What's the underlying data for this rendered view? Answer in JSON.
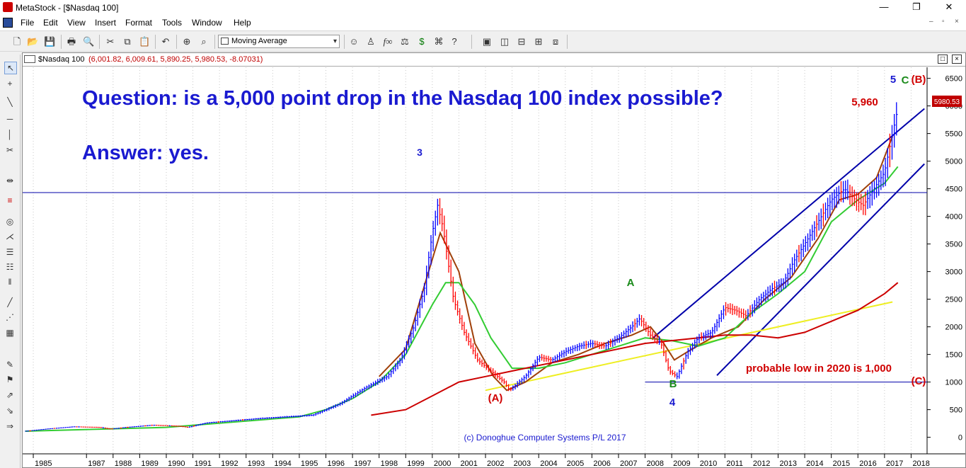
{
  "window": {
    "title": "MetaStock - [$Nasdaq 100]",
    "minimize": "—",
    "maximize": "❐",
    "close": "✕"
  },
  "menu": {
    "items": [
      "File",
      "Edit",
      "View",
      "Insert",
      "Format",
      "Tools",
      "Window",
      "Help"
    ],
    "mdi_min": "–",
    "mdi_restore": "▫",
    "mdi_close": "×"
  },
  "toolbar": {
    "indicator_select": "Moving Average",
    "indicator_chevron": "▾"
  },
  "chart_window": {
    "name": "$Nasdaq 100",
    "ohlc": "(6,001.82, 6,009.61, 5,890.25, 5,980.53, -8.07031)"
  },
  "chart_data": {
    "type": "line",
    "title": "Question: is a 5,000 point drop in the Nasdaq 100 index possible?",
    "subtitle": "Answer: yes.",
    "x_ticks": [
      "1985",
      "1987",
      "1988",
      "1989",
      "1990",
      "1991",
      "1992",
      "1993",
      "1994",
      "1995",
      "1996",
      "1997",
      "1998",
      "1999",
      "2000",
      "2001",
      "2002",
      "2003",
      "2004",
      "2005",
      "2006",
      "2007",
      "2008",
      "2009",
      "2010",
      "2011",
      "2012",
      "2013",
      "2014",
      "2015",
      "2016",
      "2017",
      "2018"
    ],
    "y_ticks": [
      0,
      500,
      1000,
      1500,
      2000,
      2500,
      3000,
      3500,
      4000,
      4500,
      5000,
      5500,
      6000,
      6500
    ],
    "ylim": [
      -300,
      6700
    ],
    "xlim": [
      1984.6,
      2018.6
    ],
    "last_price_label": "5980.53",
    "colors": {
      "price_up": "#0000ff",
      "price_down": "#ff0000",
      "ma_short": "#a0400a",
      "ma_mid": "#33cc33",
      "ma_long": "#cc0000",
      "trendline": "#eeee22",
      "channel": "#0000aa",
      "title": "#1a1ad0",
      "wave_blue": "#1a1ad0",
      "wave_green": "#1a8a1a",
      "wave_red": "#d00000"
    },
    "series": [
      {
        "name": "Price",
        "x": [
          1984.7,
          1985.5,
          1986.5,
          1987.5,
          1987.9,
          1988.5,
          1989.5,
          1990.5,
          1990.8,
          1991.5,
          1992.5,
          1993.5,
          1994.5,
          1995.5,
          1996.5,
          1997.5,
          1998.3,
          1998.8,
          1999.3,
          1999.7,
          2000.0,
          2000.2,
          2000.4,
          2000.8,
          2001.2,
          2001.7,
          2002.2,
          2002.7,
          2002.9,
          2003.5,
          2004.0,
          2004.5,
          2005.0,
          2005.5,
          2006.0,
          2006.5,
          2007.0,
          2007.5,
          2007.8,
          2008.2,
          2008.6,
          2008.9,
          2009.2,
          2009.6,
          2010.0,
          2010.5,
          2011.0,
          2011.4,
          2011.8,
          2012.3,
          2012.8,
          2013.2,
          2013.6,
          2014.0,
          2014.5,
          2015.0,
          2015.5,
          2015.9,
          2016.2,
          2016.6,
          2017.0,
          2017.3,
          2017.5
        ],
        "values": [
          110,
          150,
          190,
          180,
          150,
          180,
          220,
          200,
          180,
          260,
          300,
          340,
          370,
          400,
          600,
          900,
          1100,
          1400,
          2000,
          2700,
          3700,
          4200,
          3800,
          2500,
          1900,
          1400,
          1200,
          1000,
          850,
          1100,
          1450,
          1400,
          1550,
          1650,
          1700,
          1650,
          1800,
          2000,
          2150,
          1850,
          1700,
          1200,
          1100,
          1550,
          1800,
          1900,
          2350,
          2300,
          2200,
          2500,
          2700,
          2800,
          3200,
          3500,
          3900,
          4300,
          4500,
          4300,
          4200,
          4500,
          4800,
          5500,
          5960
        ]
      },
      {
        "name": "MA short",
        "x": [
          1998.0,
          1999.0,
          1999.8,
          2000.3,
          2001.0,
          2001.6,
          2002.3,
          2002.8,
          2003.5,
          2004.5,
          2005.5,
          2006.5,
          2007.5,
          2008.2,
          2008.7,
          2009.1,
          2009.6,
          2010.5,
          2011.5,
          2012.5,
          2013.5,
          2014.5,
          2015.3,
          2016.0,
          2016.7,
          2017.3
        ],
        "values": [
          1100,
          1600,
          2900,
          3700,
          3000,
          1700,
          1100,
          850,
          1000,
          1350,
          1500,
          1700,
          1850,
          2000,
          1700,
          1400,
          1550,
          1800,
          2000,
          2500,
          2900,
          3600,
          4300,
          4400,
          4700,
          5450
        ]
      },
      {
        "name": "MA mid",
        "x": [
          1984.7,
          1990,
          1995,
          1996,
          1997,
          1998,
          1999,
          2000.0,
          2000.5,
          2001.0,
          2001.6,
          2002.2,
          2003.0,
          2004,
          2005,
          2006,
          2007,
          2008,
          2009,
          2010,
          2011,
          2012,
          2013,
          2014,
          2015,
          2016,
          2017,
          2017.5
        ],
        "values": [
          110,
          180,
          370,
          500,
          700,
          1000,
          1500,
          2400,
          2800,
          2800,
          2400,
          1800,
          1250,
          1250,
          1350,
          1500,
          1650,
          1800,
          1750,
          1650,
          1800,
          2250,
          2600,
          3000,
          3900,
          4300,
          4600,
          4900
        ]
      },
      {
        "name": "MA long",
        "x": [
          1997.7,
          1999,
          2000,
          2001,
          2002,
          2003,
          2004,
          2005,
          2006,
          2007,
          2008,
          2009,
          2010,
          2011,
          2012,
          2013,
          2014,
          2015,
          2016,
          2017,
          2017.5
        ],
        "values": [
          400,
          500,
          750,
          1000,
          1100,
          1200,
          1300,
          1400,
          1500,
          1600,
          1700,
          1750,
          1800,
          1850,
          1850,
          1800,
          1900,
          2100,
          2300,
          2600,
          2800
        ]
      }
    ],
    "trendlines": [
      {
        "name": "support",
        "x": [
          2002.0,
          2017.3
        ],
        "values": [
          850,
          2450
        ]
      }
    ],
    "horizontal_levels": [
      {
        "name": "4430 line",
        "value": 4430
      },
      {
        "name": "1000 low",
        "value": 1000,
        "x_from": 2008.0
      }
    ],
    "channel": [
      {
        "x": [
          2008.3,
          2018.5
        ],
        "values": [
          1800,
          5950
        ]
      },
      {
        "x": [
          2010.7,
          2018.5
        ],
        "values": [
          1120,
          4950
        ]
      }
    ],
    "annotations": {
      "wave_3": "3",
      "wave_4": "4",
      "wave_5": "5",
      "wave_A": "A",
      "wave_B": "B",
      "wave_C": "C",
      "wave_paren_A": "(A)",
      "wave_paren_B": "(B)",
      "wave_paren_C": "(C)",
      "peak_label": "5,960",
      "probable_low": "probable low in 2020 is 1,000",
      "copyright": "(c) Donoghue Computer Systems P/L 2017"
    }
  }
}
